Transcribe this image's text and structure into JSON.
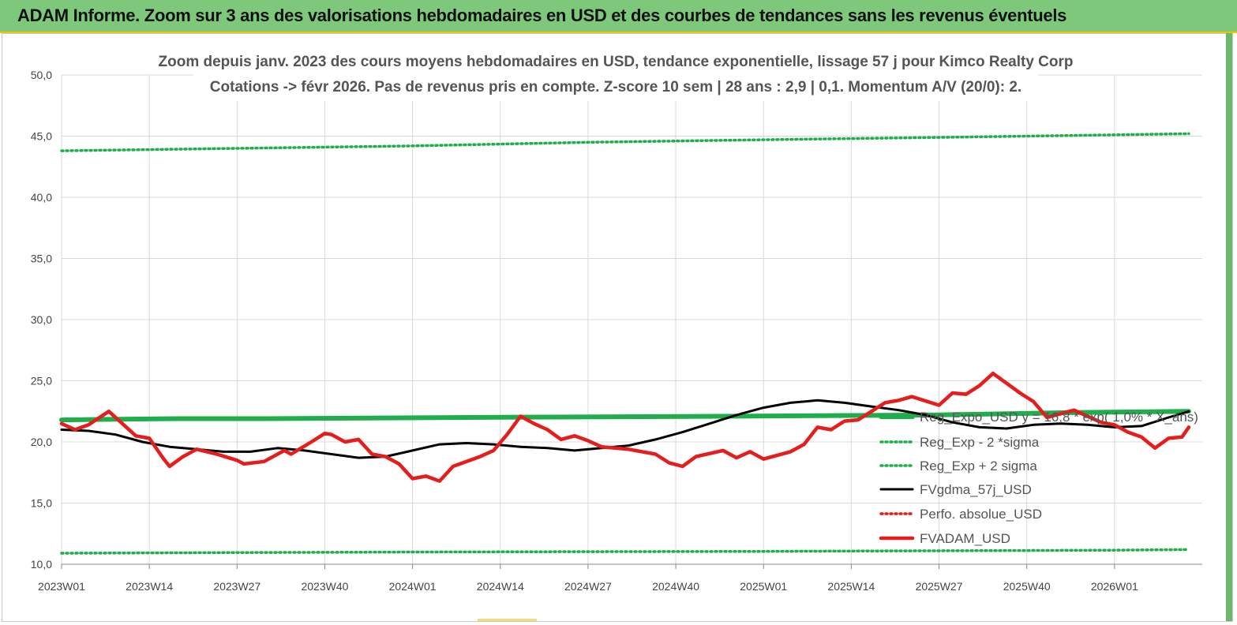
{
  "banner": {
    "title": "ADAM Informe. Zoom sur 3 ans des valorisations hebdomadaires en USD et des courbes de tendances sans les revenus éventuels"
  },
  "colors": {
    "banner_bg": "#7ec87c",
    "reg_green": "#1fae4b",
    "red": "#e51d1d",
    "black": "#000000",
    "grid": "#d9d9d9"
  },
  "chart_data": {
    "type": "line",
    "title": "Zoom depuis janv. 2023 des cours moyens hebdomadaires en USD, tendance exponentielle, lissage 57 j pour Kimco Realty Corp",
    "subtitle": "Cotations -> févr 2026. Pas de revenus pris en compte. Z-score 10 sem | 28 ans : 2,9 | 0,1. Momentum A/V (20/0): 2.",
    "x_tick_labels": [
      "2023W01",
      "2023W14",
      "2023W27",
      "2023W40",
      "2024W01",
      "2024W14",
      "2024W27",
      "2024W40",
      "2025W01",
      "2025W14",
      "2025W27",
      "2025W40",
      "2026W01"
    ],
    "y_tick_labels": [
      "10,0",
      "15,0",
      "20,0",
      "25,0",
      "30,0",
      "35,0",
      "40,0",
      "45,0",
      "50,0"
    ],
    "ylim": [
      10,
      50
    ],
    "grid": true,
    "legend_position": "bottom-right",
    "x_unit": "weeks since 2023W01",
    "series": [
      {
        "name": "Reg_Expo_USD y = 16,8 * exp( 1,0% * X_ans)",
        "style": "solid-thick",
        "color": "#1fae4b",
        "points": [
          [
            0,
            21.8
          ],
          [
            17,
            21.9
          ],
          [
            30,
            21.9
          ],
          [
            60,
            22.0
          ],
          [
            100,
            22.1
          ],
          [
            129,
            22.2
          ],
          [
            150,
            22.4
          ],
          [
            167,
            22.5
          ]
        ]
      },
      {
        "name": "Reg_Exp - 2 *sigma",
        "style": "dotted",
        "color": "#1fae4b",
        "points": [
          [
            0,
            10.9
          ],
          [
            52,
            11.0
          ],
          [
            104,
            11.05
          ],
          [
            156,
            11.15
          ],
          [
            167,
            11.2
          ]
        ]
      },
      {
        "name": "Reg_Exp + 2 sigma",
        "style": "dotted",
        "color": "#1fae4b",
        "points": [
          [
            0,
            43.8
          ],
          [
            26,
            44.0
          ],
          [
            52,
            44.2
          ],
          [
            78,
            44.5
          ],
          [
            104,
            44.7
          ],
          [
            130,
            44.9
          ],
          [
            156,
            45.1
          ],
          [
            167,
            45.2
          ]
        ]
      },
      {
        "name": "FVgdma_57j_USD",
        "style": "solid",
        "color": "#000000",
        "points": [
          [
            0,
            21.0
          ],
          [
            4,
            20.9
          ],
          [
            8,
            20.6
          ],
          [
            12,
            20.0
          ],
          [
            16,
            19.6
          ],
          [
            20,
            19.4
          ],
          [
            24,
            19.2
          ],
          [
            28,
            19.2
          ],
          [
            32,
            19.5
          ],
          [
            36,
            19.3
          ],
          [
            40,
            19.0
          ],
          [
            44,
            18.7
          ],
          [
            48,
            18.8
          ],
          [
            52,
            19.3
          ],
          [
            56,
            19.8
          ],
          [
            60,
            19.9
          ],
          [
            64,
            19.8
          ],
          [
            68,
            19.6
          ],
          [
            72,
            19.5
          ],
          [
            76,
            19.3
          ],
          [
            80,
            19.5
          ],
          [
            84,
            19.7
          ],
          [
            88,
            20.2
          ],
          [
            92,
            20.8
          ],
          [
            96,
            21.5
          ],
          [
            100,
            22.2
          ],
          [
            104,
            22.8
          ],
          [
            108,
            23.2
          ],
          [
            112,
            23.4
          ],
          [
            116,
            23.2
          ],
          [
            120,
            22.9
          ],
          [
            124,
            22.6
          ],
          [
            128,
            22.2
          ],
          [
            132,
            21.6
          ],
          [
            136,
            21.2
          ],
          [
            140,
            21.1
          ],
          [
            144,
            21.4
          ],
          [
            148,
            21.5
          ],
          [
            152,
            21.4
          ],
          [
            156,
            21.2
          ],
          [
            160,
            21.3
          ],
          [
            164,
            22.0
          ],
          [
            167,
            22.5
          ]
        ]
      },
      {
        "name": "Perfo. absolue_USD",
        "style": "dotted",
        "color": "#e51d1d",
        "points": []
      },
      {
        "name": "FVADAM_USD",
        "style": "solid-thick",
        "color": "#e51d1d",
        "points": [
          [
            0,
            21.5
          ],
          [
            2,
            21.0
          ],
          [
            4,
            21.4
          ],
          [
            7,
            22.5
          ],
          [
            9,
            21.5
          ],
          [
            11,
            20.5
          ],
          [
            13,
            20.3
          ],
          [
            15,
            18.7
          ],
          [
            16,
            18.0
          ],
          [
            18,
            18.8
          ],
          [
            20,
            19.4
          ],
          [
            23,
            19.0
          ],
          [
            26,
            18.5
          ],
          [
            27,
            18.2
          ],
          [
            30,
            18.4
          ],
          [
            33,
            19.3
          ],
          [
            34,
            19.0
          ],
          [
            37,
            20.0
          ],
          [
            39,
            20.7
          ],
          [
            40,
            20.6
          ],
          [
            42,
            20.0
          ],
          [
            44,
            20.2
          ],
          [
            46,
            19.0
          ],
          [
            48,
            18.8
          ],
          [
            50,
            18.2
          ],
          [
            52,
            17.0
          ],
          [
            54,
            17.2
          ],
          [
            56,
            16.8
          ],
          [
            58,
            18.0
          ],
          [
            62,
            18.8
          ],
          [
            64,
            19.3
          ],
          [
            66,
            20.6
          ],
          [
            68,
            22.1
          ],
          [
            70,
            21.5
          ],
          [
            72,
            21.0
          ],
          [
            74,
            20.2
          ],
          [
            76,
            20.5
          ],
          [
            78,
            20.1
          ],
          [
            80,
            19.6
          ],
          [
            84,
            19.4
          ],
          [
            88,
            19.0
          ],
          [
            90,
            18.3
          ],
          [
            92,
            18.0
          ],
          [
            94,
            18.8
          ],
          [
            98,
            19.3
          ],
          [
            100,
            18.7
          ],
          [
            102,
            19.2
          ],
          [
            104,
            18.6
          ],
          [
            108,
            19.2
          ],
          [
            110,
            19.8
          ],
          [
            112,
            21.2
          ],
          [
            114,
            21.0
          ],
          [
            116,
            21.7
          ],
          [
            118,
            21.8
          ],
          [
            120,
            22.5
          ],
          [
            122,
            23.2
          ],
          [
            124,
            23.4
          ],
          [
            126,
            23.7
          ],
          [
            130,
            23.0
          ],
          [
            132,
            24.0
          ],
          [
            134,
            23.9
          ],
          [
            136,
            24.6
          ],
          [
            138,
            25.6
          ],
          [
            140,
            24.8
          ],
          [
            142,
            24.0
          ],
          [
            144,
            23.3
          ],
          [
            146,
            22.0
          ],
          [
            150,
            22.6
          ],
          [
            152,
            22.1
          ],
          [
            154,
            21.6
          ],
          [
            156,
            21.4
          ],
          [
            158,
            20.8
          ],
          [
            160,
            20.4
          ],
          [
            162,
            19.5
          ],
          [
            164,
            20.3
          ],
          [
            166,
            20.4
          ],
          [
            167,
            21.2
          ]
        ]
      }
    ]
  }
}
